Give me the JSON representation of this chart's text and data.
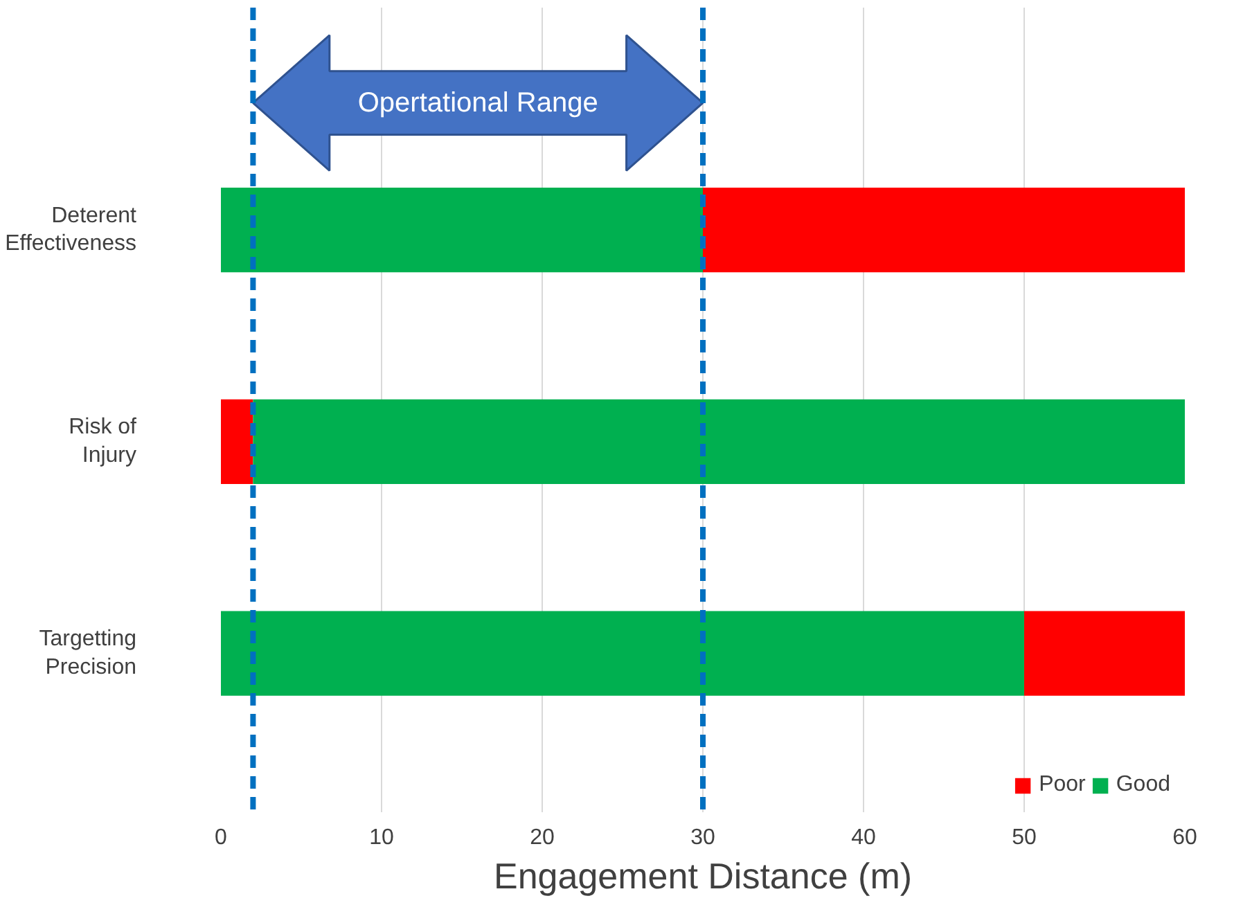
{
  "chart_data": {
    "type": "bar",
    "orientation": "horizontal",
    "xlabel": "Engagement Distance (m)",
    "categories": [
      "Deterent Effectiveness",
      "Risk of Injury",
      "Targetting Precision"
    ],
    "series": [
      {
        "name": "Poor",
        "color": "#ff0000",
        "values": [
          30,
          2,
          10
        ],
        "base": [
          30,
          0,
          50
        ]
      },
      {
        "name": "Good",
        "color": "#00b050",
        "values": [
          30,
          58,
          50
        ],
        "base": [
          0,
          2,
          0
        ]
      }
    ],
    "xlim": [
      0,
      60
    ],
    "xticks": [
      0,
      10,
      20,
      30,
      40,
      50,
      60
    ],
    "grid": "x",
    "legend": "bottom right",
    "ref_lines": [
      {
        "axis": "x",
        "value": 2,
        "color": "#0070c0",
        "line_style": "dashed"
      },
      {
        "axis": "x",
        "value": 30,
        "color": "#0070c0",
        "line_style": "dashed"
      }
    ],
    "annotations": [
      "Opertational Range"
    ]
  }
}
